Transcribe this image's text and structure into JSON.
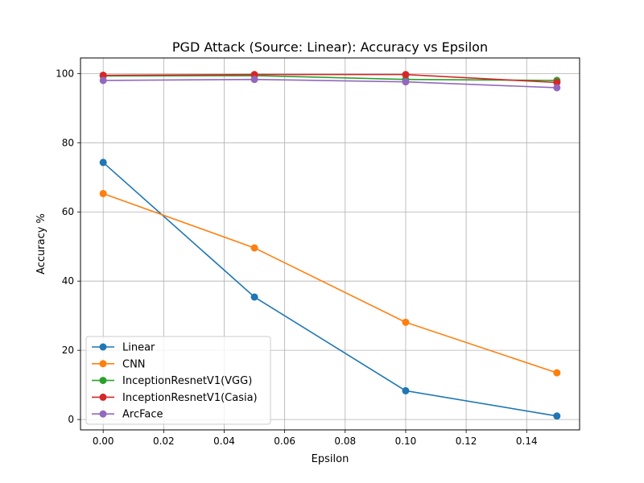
{
  "chart_data": {
    "type": "line",
    "title": "PGD Attack (Source: Linear): Accuracy vs Epsilon",
    "xlabel": "Epsilon",
    "ylabel": "Accuracy %",
    "x": [
      0.0,
      0.05,
      0.1,
      0.15
    ],
    "xlim": [
      -0.0075,
      0.1575
    ],
    "ylim": [
      -3.0,
      104.5
    ],
    "xticks": [
      0.0,
      0.02,
      0.04,
      0.06,
      0.08,
      0.1,
      0.12,
      0.14
    ],
    "xtick_labels": [
      "0.00",
      "0.02",
      "0.04",
      "0.06",
      "0.08",
      "0.10",
      "0.12",
      "0.14"
    ],
    "yticks": [
      0,
      20,
      40,
      60,
      80,
      100
    ],
    "ytick_labels": [
      "0",
      "20",
      "40",
      "60",
      "80",
      "100"
    ],
    "grid": true,
    "legend_position": "lower-left",
    "series": [
      {
        "name": "Linear",
        "color": "#1f77b4",
        "values": [
          74.3,
          35.4,
          8.3,
          1.0
        ]
      },
      {
        "name": "CNN",
        "color": "#ff7f0e",
        "values": [
          65.3,
          49.6,
          28.1,
          13.5
        ]
      },
      {
        "name": "InceptionResnetV1(VGG)",
        "color": "#2ca02c",
        "values": [
          99.3,
          99.4,
          98.3,
          98.0
        ]
      },
      {
        "name": "InceptionResnetV1(Casia)",
        "color": "#d62728",
        "values": [
          99.5,
          99.7,
          99.7,
          97.4
        ]
      },
      {
        "name": "ArcFace",
        "color": "#9467bd",
        "values": [
          98.0,
          98.3,
          97.6,
          95.9
        ]
      }
    ]
  }
}
